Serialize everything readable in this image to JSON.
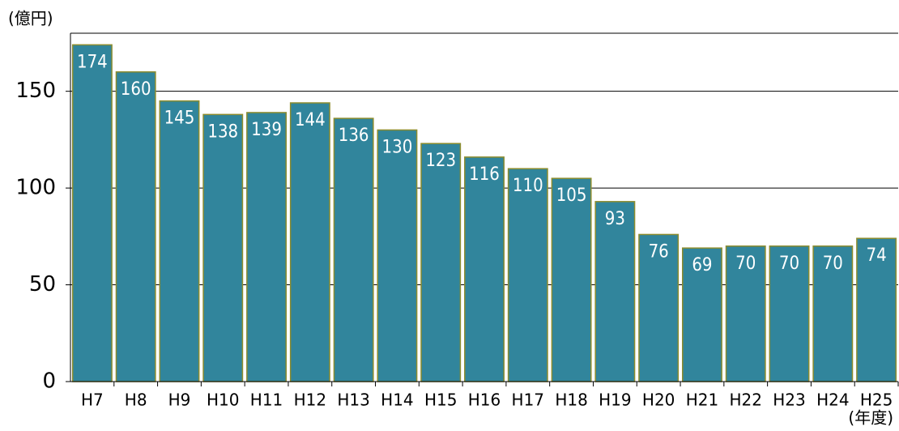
{
  "chart_data": {
    "type": "bar",
    "y_label": "(億円)",
    "x_label": "(年度)",
    "categories": [
      "H7",
      "H8",
      "H9",
      "H10",
      "H11",
      "H12",
      "H13",
      "H14",
      "H15",
      "H16",
      "H17",
      "H18",
      "H19",
      "H20",
      "H21",
      "H22",
      "H23",
      "H24",
      "H25"
    ],
    "values": [
      174,
      160,
      145,
      138,
      139,
      144,
      136,
      130,
      123,
      116,
      110,
      105,
      93,
      76,
      69,
      70,
      70,
      70,
      74
    ],
    "color": "#31859c",
    "edge_color": "#8c8c2e",
    "ylim": [
      0,
      180
    ],
    "yticks": [
      0,
      50,
      100,
      150
    ],
    "grid": true
  }
}
